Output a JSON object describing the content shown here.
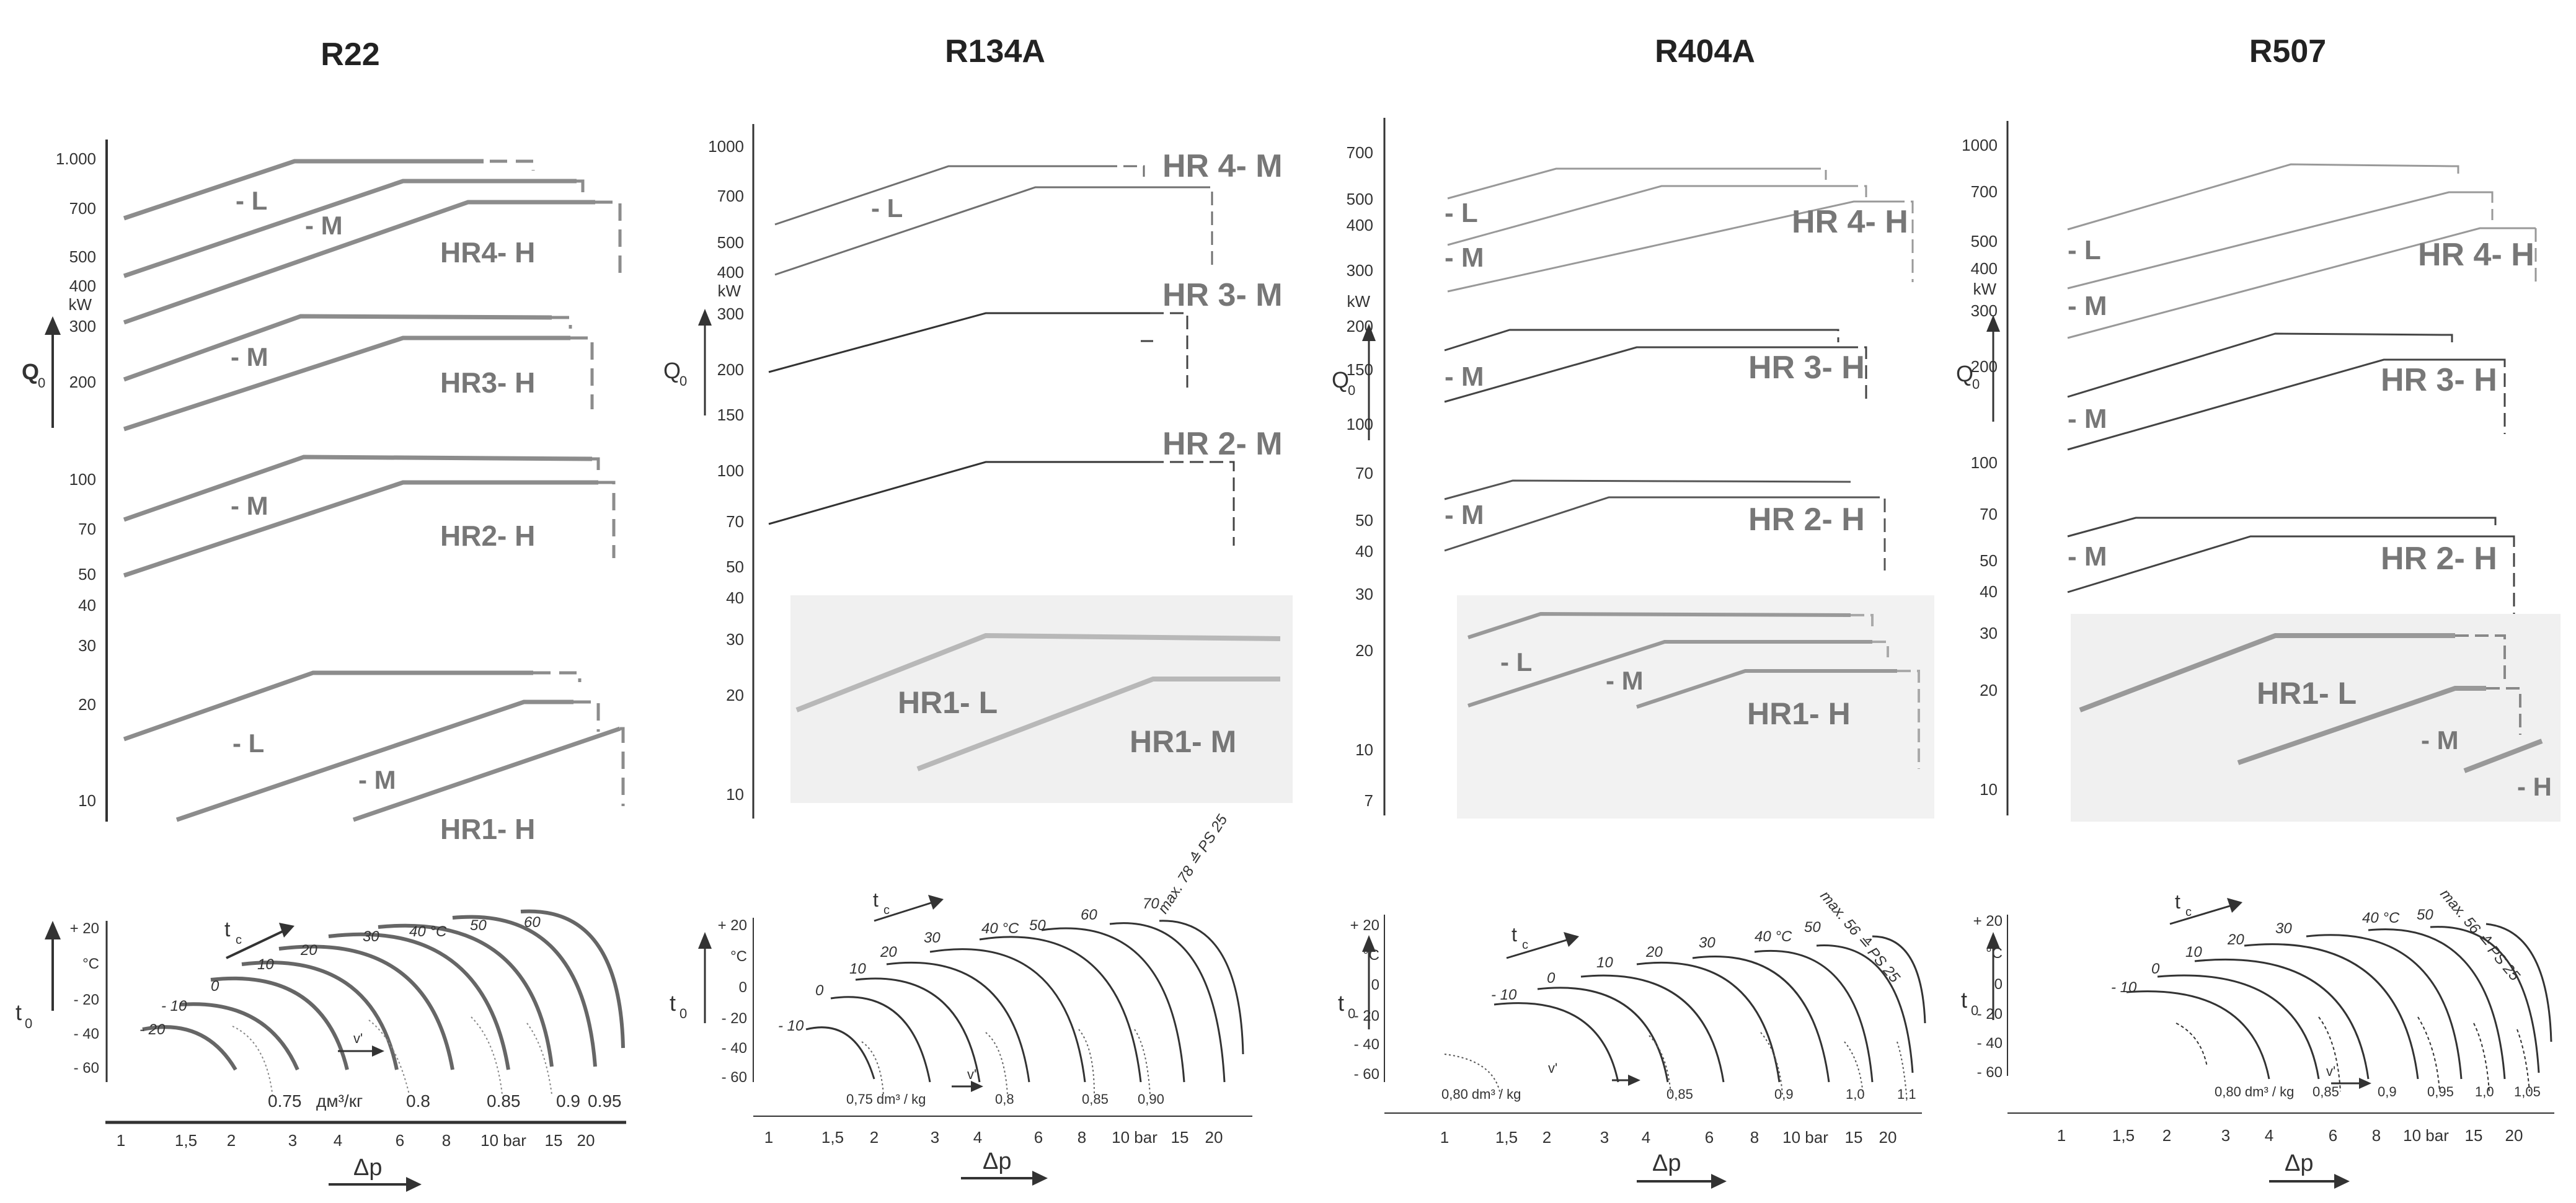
{
  "chart_data": [
    {
      "type": "line",
      "title": "R22",
      "y_axis": {
        "label": "Q",
        "sub": "0",
        "unit": "kW",
        "scale": "log",
        "ticks": [
          "1.000",
          "700",
          "500",
          "400",
          "300",
          "200",
          "100",
          "70",
          "50",
          "40",
          "30",
          "20",
          "10"
        ]
      },
      "family_labels": [
        "HR4- H",
        "HR3- H",
        "HR2- H",
        "HR1- H"
      ],
      "series_labels": [
        "- L",
        "- M",
        "- M",
        "- M",
        "- L",
        "- M"
      ],
      "t0_axis": {
        "label": "t",
        "sub": "0",
        "unit": "°C",
        "ticks": [
          "+ 20",
          "°C",
          "- 20",
          "- 40",
          "- 60"
        ]
      },
      "tc_label": "t",
      "tc_sub": "c",
      "curve_labels": [
        "- 20",
        "- 10",
        "0",
        "10",
        "20",
        "30",
        "40 °C",
        "50",
        "60"
      ],
      "v_label": "v'",
      "v_values": [
        "0.75",
        "дм³/кг",
        "0.8",
        "0.85",
        "0.9",
        "0.95"
      ],
      "dp_axis": {
        "label": "Δp",
        "ticks": [
          "1",
          "1,5",
          "2",
          "3",
          "4",
          "6",
          "8",
          "10 bar",
          "15",
          "20"
        ]
      }
    },
    {
      "type": "line",
      "title": "R134A",
      "y_axis": {
        "label": "Q",
        "sub": "0",
        "unit": "kW",
        "scale": "log",
        "ticks": [
          "1000",
          "700",
          "500",
          "400",
          "300",
          "200",
          "150",
          "100",
          "70",
          "50",
          "40",
          "30",
          "20",
          "10"
        ]
      },
      "family_labels": [
        "HR 4- M",
        "HR 3- M",
        "HR 2- M",
        "HR1- L",
        "HR1- M"
      ],
      "series_labels": [
        "- L"
      ],
      "t0_axis": {
        "label": "t",
        "sub": "0",
        "unit": "°C",
        "ticks": [
          "+ 20",
          "°C",
          "0",
          "- 20",
          "- 40",
          "- 60"
        ]
      },
      "tc_label": "t",
      "tc_sub": "c",
      "curve_labels": [
        "- 10",
        "0",
        "10",
        "20",
        "30",
        "40 °C",
        "50",
        "60",
        "70",
        "max. 78 ≙ PS 25"
      ],
      "v_label": "v'",
      "v_values": [
        "0,75 dm³ / kg",
        "0,8",
        "0,85",
        "0,90"
      ],
      "dp_axis": {
        "label": "Δp",
        "ticks": [
          "1",
          "1,5",
          "2",
          "3",
          "4",
          "6",
          "8",
          "10 bar",
          "15",
          "20"
        ]
      }
    },
    {
      "type": "line",
      "title": "R404A",
      "y_axis": {
        "label": "Q",
        "sub": "0",
        "unit": "kW",
        "scale": "log",
        "ticks": [
          "700",
          "500",
          "400",
          "300",
          "200",
          "150",
          "100",
          "70",
          "50",
          "40",
          "30",
          "20",
          "10",
          "7"
        ]
      },
      "family_labels": [
        "HR 4- H",
        "HR 3- H",
        "HR 2- H",
        "HR1- H"
      ],
      "series_labels": [
        "- L",
        "- M",
        "- M",
        "- M",
        "- L",
        "- M"
      ],
      "t0_axis": {
        "label": "t",
        "sub": "0",
        "unit": "°C",
        "ticks": [
          "+ 20",
          "°C",
          "0",
          "- 20",
          "- 40",
          "- 60"
        ]
      },
      "tc_label": "t",
      "tc_sub": "c",
      "curve_labels": [
        "- 10",
        "0",
        "10",
        "20",
        "30",
        "40 °C",
        "50",
        "max. 56 ≙ PS 25"
      ],
      "v_label": "v'",
      "v_values": [
        "0,80 dm³ / kg",
        "0,85",
        "0,9",
        "1,0",
        "1,1"
      ],
      "dp_axis": {
        "label": "Δp",
        "ticks": [
          "1",
          "1,5",
          "2",
          "3",
          "4",
          "6",
          "8",
          "10 bar",
          "15",
          "20"
        ]
      }
    },
    {
      "type": "line",
      "title": "R507",
      "y_axis": {
        "label": "Q",
        "sub": "0",
        "unit": "kW",
        "scale": "log",
        "ticks": [
          "1000",
          "700",
          "500",
          "400",
          "300",
          "200",
          "100",
          "70",
          "50",
          "40",
          "30",
          "20",
          "10"
        ]
      },
      "family_labels": [
        "HR 4- H",
        "HR 3- H",
        "HR 2- H",
        "HR1- L"
      ],
      "series_labels": [
        "- L",
        "- M",
        "- M",
        "- M",
        "- M",
        "- H"
      ],
      "t0_axis": {
        "label": "t",
        "sub": "0",
        "unit": "°C",
        "ticks": [
          "+ 20",
          "°C",
          "0",
          "- 20",
          "- 40",
          "- 60"
        ]
      },
      "tc_label": "t",
      "tc_sub": "c",
      "curve_labels": [
        "- 10",
        "0",
        "10",
        "20",
        "30",
        "40 °C",
        "50",
        "max. 56 ≙ PS 25"
      ],
      "v_label": "v'",
      "v_values": [
        "0,80 dm³ / kg",
        "0,85",
        "0,9",
        "0,95",
        "1,0",
        "1,05"
      ],
      "dp_axis": {
        "label": "Δp",
        "ticks": [
          "1",
          "1,5",
          "2",
          "3",
          "4",
          "6",
          "8",
          "10 bar",
          "15",
          "20"
        ]
      }
    }
  ]
}
